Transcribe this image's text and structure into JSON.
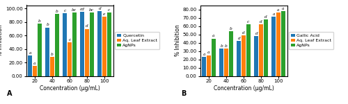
{
  "chart_data": [
    {
      "type": "bar",
      "title": "A",
      "x_label": "Concentration (μg/mL)",
      "y_label": "% Inhibition",
      "categories": [
        "20",
        "40",
        "60",
        "80",
        "100"
      ],
      "series": [
        {
          "name": "Quercetin",
          "values": [
            30,
            72,
            93,
            95,
            96
          ],
          "annotations": [
            "a",
            "b",
            "c",
            "cd",
            "d"
          ]
        },
        {
          "name": "Aq. Leaf Extract",
          "values": [
            15,
            28,
            50,
            70,
            88
          ],
          "annotations": [
            "a",
            "b",
            "c",
            "d",
            "e"
          ]
        },
        {
          "name": "AgNPs",
          "values": [
            78,
            92,
            94,
            94,
            94
          ],
          "annotations": [
            "b",
            "b",
            "bc",
            "bc",
            "c"
          ]
        }
      ],
      "ylim": [
        0,
        105
      ],
      "yticks": [
        {
          "value": 0,
          "label": "0.00"
        },
        {
          "value": 20,
          "label": "20.00"
        },
        {
          "value": 40,
          "label": "40.00"
        },
        {
          "value": 60,
          "label": "60.00"
        },
        {
          "value": 80,
          "label": "80.00"
        },
        {
          "value": 100,
          "label": "100.00"
        }
      ],
      "legend": "right"
    },
    {
      "type": "bar",
      "title": "B",
      "x_label": "Concentration (μg/mL)",
      "y_label": "% Inhibition",
      "categories": [
        "20",
        "40",
        "60",
        "80",
        "100"
      ],
      "series": [
        {
          "name": "Gallic Acid",
          "values": [
            23,
            33,
            42,
            48,
            71
          ],
          "annotations": [
            "a",
            "b",
            "d",
            "d",
            "a"
          ]
        },
        {
          "name": "Aq. Leaf Extract",
          "values": [
            25,
            33,
            49,
            62,
            76
          ],
          "annotations": [
            "a",
            "b",
            "d",
            "d",
            "a"
          ]
        },
        {
          "name": "AgNPs",
          "values": [
            45,
            54,
            62,
            68,
            78
          ],
          "annotations": [
            "a",
            "b",
            "c",
            "d",
            "a"
          ]
        }
      ],
      "ylim": [
        0,
        85
      ],
      "yticks": [
        {
          "value": 0,
          "label": "0.00"
        },
        {
          "value": 10,
          "label": "10.00"
        },
        {
          "value": 20,
          "label": "20.00"
        },
        {
          "value": 30,
          "label": "30.00"
        },
        {
          "value": 40,
          "label": "40.00"
        },
        {
          "value": 50,
          "label": "50.00"
        },
        {
          "value": 60,
          "label": "60.00"
        },
        {
          "value": 70,
          "label": "70.00"
        },
        {
          "value": 80,
          "label": "80.00"
        }
      ],
      "legend": "right"
    }
  ]
}
